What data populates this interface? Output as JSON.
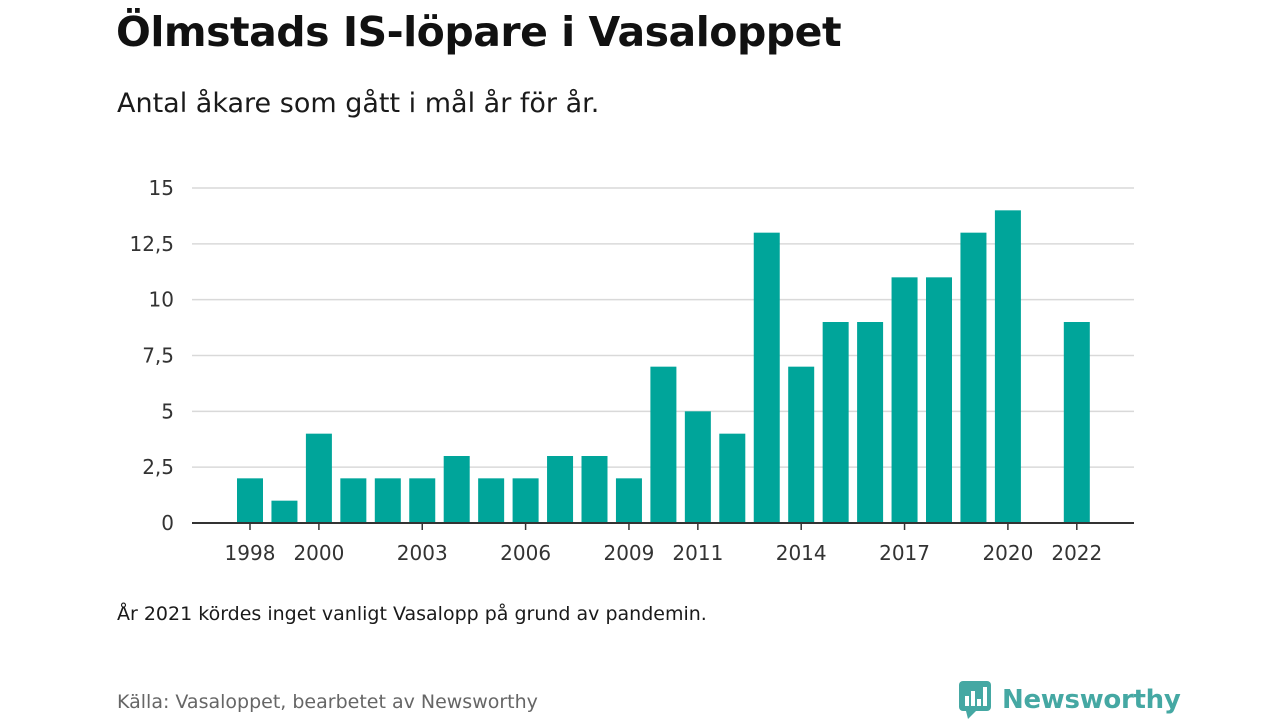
{
  "title": "Ölmstads IS-löpare i Vasaloppet",
  "subtitle": "Antal åkare som gått i mål år för år.",
  "note": "År 2021 kördes inget vanligt Vasalopp på grund av pandemin.",
  "source": "Källa: Vasaloppet, bearbetet av Newsworthy",
  "brand": {
    "name": "Newsworthy",
    "icon": "newsworthy-logo-icon",
    "color": "#45a8a3"
  },
  "colors": {
    "bar": "#00a59a",
    "grid": "#d9d9d9",
    "axis": "#333333",
    "tick_text": "#333333"
  },
  "chart_data": {
    "type": "bar",
    "title": "Ölmstads IS-löpare i Vasaloppet",
    "subtitle": "Antal åkare som gått i mål år för år.",
    "xlabel": "",
    "ylabel": "",
    "categories": [
      "1998",
      "1999",
      "2000",
      "2001",
      "2002",
      "2003",
      "2004",
      "2005",
      "2006",
      "2007",
      "2008",
      "2009",
      "2010",
      "2011",
      "2012",
      "2013",
      "2014",
      "2015",
      "2016",
      "2017",
      "2018",
      "2019",
      "2020",
      "2021",
      "2022"
    ],
    "values": [
      2,
      1,
      4,
      2,
      2,
      2,
      3,
      2,
      2,
      3,
      3,
      2,
      7,
      5,
      4,
      13,
      7,
      9,
      9,
      11,
      11,
      13,
      14,
      null,
      9
    ],
    "x_tick_labels": [
      "1998",
      "2000",
      "2003",
      "2006",
      "2009",
      "2011",
      "2014",
      "2017",
      "2020",
      "2022"
    ],
    "y_ticks": [
      0,
      2.5,
      5,
      7.5,
      10,
      12.5,
      15
    ],
    "y_tick_labels": [
      "0",
      "2,5",
      "5",
      "7,5",
      "10",
      "12,5",
      "15"
    ],
    "ylim": [
      0,
      15
    ],
    "grid": true,
    "legend": "none"
  }
}
